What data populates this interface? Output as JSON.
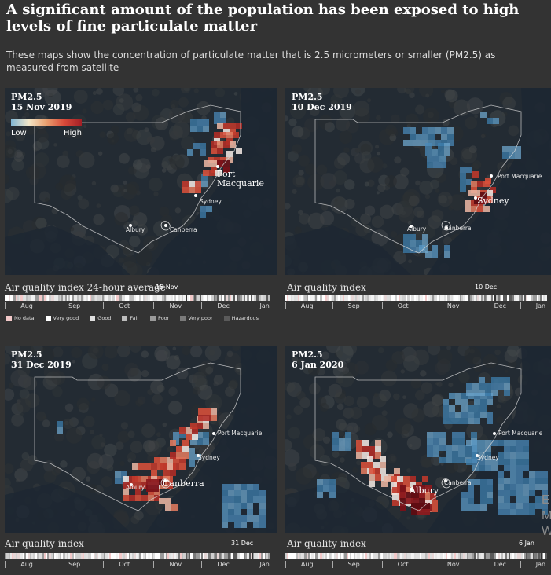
{
  "headline": "A significant amount of the population has been exposed to high levels of fine particulate matter",
  "standfirst": "These maps show the concentration of particulate matter that is 2.5 micrometers or smaller (PM2.5) as measured from satellite",
  "legend": {
    "low": "Low",
    "high": "High"
  },
  "months": [
    "Aug",
    "Sep",
    "Oct",
    "Nov",
    "Dec",
    "Jan"
  ],
  "categories": [
    {
      "label": "No data",
      "color": "#f2c9c9"
    },
    {
      "label": "Very good",
      "color": "#ffffff"
    },
    {
      "label": "Good",
      "color": "#e0e0e0"
    },
    {
      "label": "Fair",
      "color": "#bdbdbd"
    },
    {
      "label": "Poor",
      "color": "#9a9a9a"
    },
    {
      "label": "Very poor",
      "color": "#7a7a7a"
    },
    {
      "label": "Hazardous",
      "color": "#5a5a5a"
    }
  ],
  "colors": {
    "background": "#333333",
    "map": "#232b33",
    "pm_high": "#c0392b",
    "pm_low": "#5b9ac6"
  },
  "panels": [
    {
      "pm": "PM2.5",
      "date": "15 Nov 2019",
      "aqi_title": "Air quality index 24-hour average",
      "marker": "15 Nov",
      "cities": [
        "Port Macquarie",
        "Sydney",
        "Canberra",
        "Albury"
      ]
    },
    {
      "pm": "PM2.5",
      "date": "10 Dec 2019",
      "aqi_title": "Air quality index",
      "marker": "10 Dec",
      "cities": [
        "Port Macquarie",
        "Sydney",
        "Canberra",
        "Albury"
      ]
    },
    {
      "pm": "PM2.5",
      "date": "31 Dec 2019",
      "aqi_title": "Air quality index",
      "marker": "31 Dec",
      "cities": [
        "Port Macquarie",
        "Sydney",
        "Canberra",
        "Albury"
      ]
    },
    {
      "pm": "PM2.5",
      "date": "6 Jan 2020",
      "aqi_title": "Air quality index",
      "marker": "6 Jan",
      "cities": [
        "Port Macquarie",
        "Sydney",
        "Canberra",
        "Albury"
      ]
    }
  ],
  "chart_data": {
    "type": "heatmap",
    "title": "",
    "legend_scale": [
      "Low",
      "High"
    ],
    "timeline_categories": [
      "No data",
      "Very good",
      "Good",
      "Fair",
      "Poor",
      "Very poor",
      "Hazardous"
    ],
    "timeline_months": [
      "Aug",
      "Sep",
      "Oct",
      "Nov",
      "Dec",
      "Jan"
    ],
    "maps": [
      {
        "date": "15 Nov 2019",
        "marker": "15 Nov",
        "hotspot": "Port Macquarie"
      },
      {
        "date": "10 Dec 2019",
        "marker": "10 Dec",
        "hotspot": "Sydney"
      },
      {
        "date": "31 Dec 2019",
        "marker": "31 Dec",
        "hotspot": "Canberra"
      },
      {
        "date": "6 Jan 2020",
        "marker": "6 Jan",
        "hotspot": "Albury"
      }
    ]
  },
  "cutoff": [
    "E",
    "M",
    "W"
  ]
}
